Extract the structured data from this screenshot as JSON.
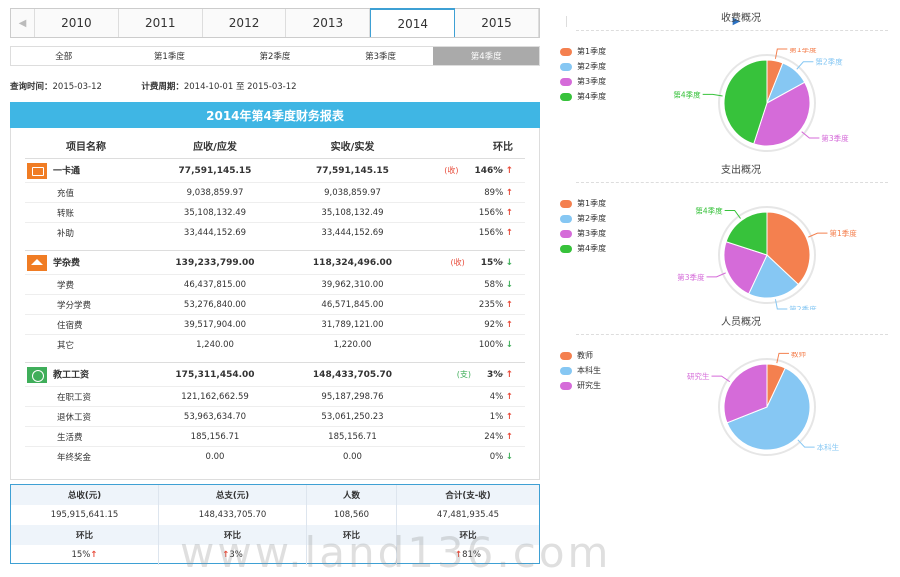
{
  "years": [
    "2010",
    "2011",
    "2012",
    "2013",
    "2014",
    "2015"
  ],
  "active_year": "2014",
  "quarters": [
    "全部",
    "第1季度",
    "第2季度",
    "第3季度",
    "第4季度"
  ],
  "active_quarter": "第4季度",
  "query": {
    "query_label": "查询时间：",
    "query_value": "2015-03-12",
    "period_label": "计费周期：",
    "period_value": "2014-10-01 至 2015-03-12"
  },
  "report_title": "2014年第4季度财务报表",
  "table": {
    "headers": [
      "项目名称",
      "应收/应发",
      "实收/实发",
      "环比"
    ],
    "groups": [
      {
        "name": "一卡通",
        "icon": "card-icon",
        "receivable": "77,591,145.15",
        "received": "77,591,145.15",
        "tag": "(收)",
        "tag_color": "red",
        "ratio": "146%",
        "trend": "up",
        "items": [
          {
            "name": "充值",
            "receivable": "9,038,859.97",
            "received": "9,038,859.97",
            "ratio": "89%",
            "trend": "up"
          },
          {
            "name": "转账",
            "receivable": "35,108,132.49",
            "received": "35,108,132.49",
            "ratio": "156%",
            "trend": "up"
          },
          {
            "name": "补助",
            "receivable": "33,444,152.69",
            "received": "33,444,152.69",
            "ratio": "156%",
            "trend": "up"
          }
        ]
      },
      {
        "name": "学杂费",
        "icon": "graduation-cap-icon",
        "receivable": "139,233,799.00",
        "received": "118,324,496.00",
        "tag": "(收)",
        "tag_color": "red",
        "ratio": "15%",
        "trend": "down",
        "items": [
          {
            "name": "学费",
            "receivable": "46,437,815.00",
            "received": "39,962,310.00",
            "ratio": "58%",
            "trend": "down"
          },
          {
            "name": "学分学费",
            "receivable": "53,276,840.00",
            "received": "46,571,845.00",
            "ratio": "235%",
            "trend": "up"
          },
          {
            "name": "住宿费",
            "receivable": "39,517,904.00",
            "received": "31,789,121.00",
            "ratio": "92%",
            "trend": "up"
          },
          {
            "name": "其它",
            "receivable": "1,240.00",
            "received": "1,220.00",
            "ratio": "100%",
            "trend": "down"
          }
        ]
      },
      {
        "name": "教工工资",
        "icon": "coin-icon",
        "receivable": "175,311,454.00",
        "received": "148,433,705.70",
        "tag": "(支)",
        "tag_color": "green",
        "ratio": "3%",
        "trend": "up",
        "items": [
          {
            "name": "在职工资",
            "receivable": "121,162,662.59",
            "received": "95,187,298.76",
            "ratio": "4%",
            "trend": "up"
          },
          {
            "name": "退休工资",
            "receivable": "53,963,634.70",
            "received": "53,061,250.23",
            "ratio": "1%",
            "trend": "up"
          },
          {
            "name": "生活费",
            "receivable": "185,156.71",
            "received": "185,156.71",
            "ratio": "24%",
            "trend": "up"
          },
          {
            "name": "年终奖金",
            "receivable": "0.00",
            "received": "0.00",
            "ratio": "0%",
            "trend": "down"
          }
        ]
      }
    ]
  },
  "summary": {
    "headers": [
      "总收(元)",
      "总支(元)",
      "人数",
      "合计(支-收)"
    ],
    "values": [
      "195,915,641.15",
      "148,433,705.70",
      "108,560",
      "47,481,935.45"
    ],
    "ratio_label": "环比",
    "ratios": [
      {
        "value": "15%",
        "trend": "up",
        "arrow_side": "right"
      },
      {
        "value": "3%",
        "trend": "up",
        "arrow_side": "left"
      },
      {
        "value": "",
        "trend": "",
        "arrow_side": ""
      },
      {
        "value": "81%",
        "trend": "up",
        "arrow_side": "left"
      }
    ]
  },
  "watermark": "www.land136.com",
  "arrows": {
    "up": "↑",
    "down": "↓",
    "left": "◀",
    "right": "▶",
    "chevron": "›"
  },
  "chart_data": [
    {
      "type": "pie",
      "title": "收费概况",
      "legend": "left",
      "categories": [
        "第1季度",
        "第2季度",
        "第3季度",
        "第4季度"
      ],
      "values": [
        6,
        11,
        38,
        45
      ],
      "colors": [
        "#f4804f",
        "#86c7f3",
        "#d56bd9",
        "#37c23b"
      ]
    },
    {
      "type": "pie",
      "title": "支出概况",
      "legend": "left",
      "categories": [
        "第1季度",
        "第2季度",
        "第3季度",
        "第4季度"
      ],
      "values": [
        37,
        20,
        23,
        20
      ],
      "colors": [
        "#f4804f",
        "#86c7f3",
        "#d56bd9",
        "#37c23b"
      ]
    },
    {
      "type": "pie",
      "title": "人员概况",
      "legend": "left",
      "categories": [
        "教师",
        "本科生",
        "研究生"
      ],
      "values": [
        7,
        62,
        31
      ],
      "colors": [
        "#f4804f",
        "#86c7f3",
        "#d56bd9"
      ]
    }
  ]
}
